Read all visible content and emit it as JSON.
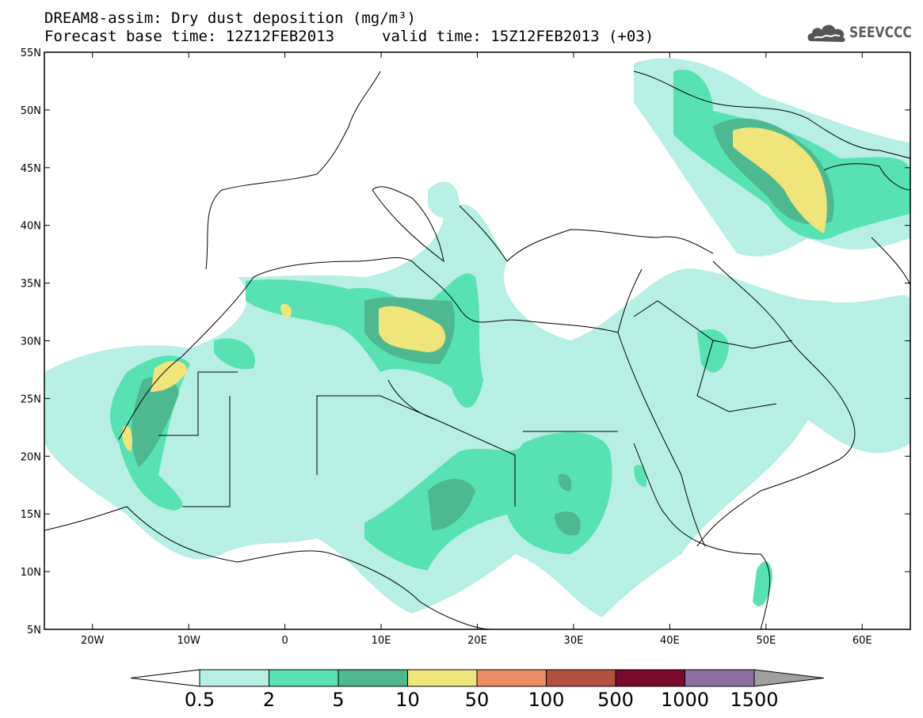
{
  "title": {
    "line1": "DREAM8-assim: Dry dust deposition (mg/m³)",
    "base_time": "Forecast base time: 12Z12FEB2013",
    "valid_time": "valid time: 15Z12FEB2013 (+03)"
  },
  "logo": {
    "name": "SEEVCCC",
    "icon": "cloud-icon"
  },
  "map": {
    "region": "North Africa, Europe and Middle East",
    "lon_range": [
      -25,
      65
    ],
    "lat_range": [
      5,
      55
    ],
    "lat_labels": [
      "55N",
      "50N",
      "45N",
      "40N",
      "35N",
      "30N",
      "25N",
      "20N",
      "15N",
      "10N",
      "5N"
    ],
    "lon_labels": [
      "20W",
      "10W",
      "0",
      "10E",
      "20E",
      "30E",
      "40E",
      "50E",
      "60E"
    ]
  },
  "colorbar": {
    "levels": [
      "0.5",
      "2",
      "5",
      "10",
      "50",
      "100",
      "500",
      "1000",
      "1500"
    ],
    "colors": [
      "#b7efe5",
      "#58e2b3",
      "#4eb890",
      "#f0e57a",
      "#ec8c64",
      "#b4503f",
      "#7a0a2d",
      "#8e6fa4",
      "#a0a0a0"
    ]
  }
}
